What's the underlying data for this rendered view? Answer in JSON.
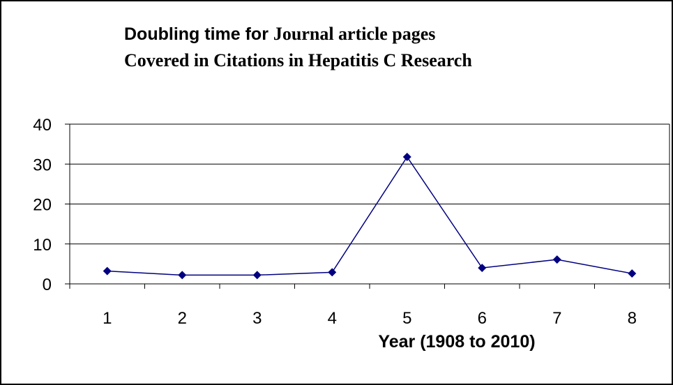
{
  "chart_data": {
    "type": "line",
    "title_line1_sans": "Doubling time for ",
    "title_line1_serif": "Journal article pages",
    "title_line2": "Covered in Citations in Hepatitis C Research",
    "xlabel": "Year (1908 to 2010)",
    "ylabel": "",
    "categories": [
      "1",
      "2",
      "3",
      "4",
      "5",
      "6",
      "7",
      "8"
    ],
    "series": [
      {
        "values": [
          3.2,
          2.2,
          2.2,
          2.9,
          31.8,
          4.0,
          6.1,
          2.6
        ]
      }
    ],
    "ylim": [
      0,
      40
    ],
    "yticks": [
      0,
      10,
      20,
      30,
      40
    ],
    "grid": "horizontal",
    "legend": "none",
    "line_color": "#000080"
  }
}
